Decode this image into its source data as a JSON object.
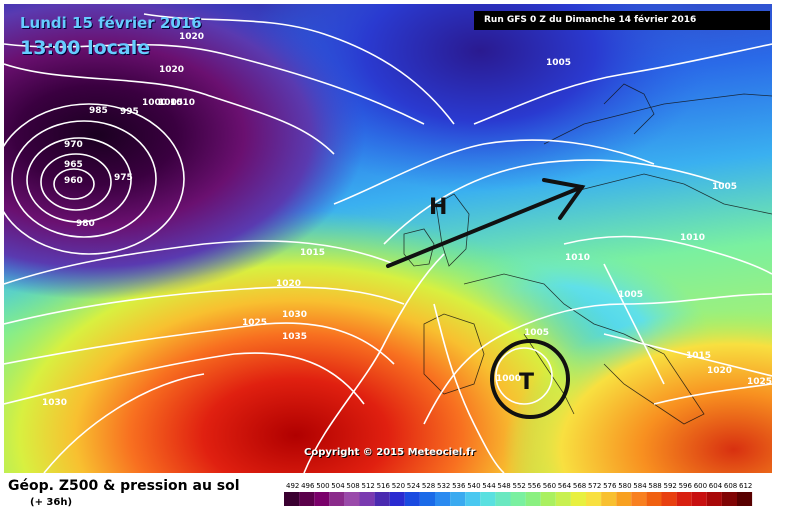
{
  "header": {
    "date": "Lundi 15 février 2016",
    "time": "13:00 locale",
    "run": "Run GFS 0 Z du Dimanche 14 février 2016"
  },
  "footer": {
    "title": "Géop. Z500 & pression au sol",
    "subtitle": "(+ 36h)",
    "copyright": "Copyright © 2015 Meteociel.fr"
  },
  "map": {
    "pressure_labels": [
      {
        "id": "p1020a",
        "text": "1020"
      },
      {
        "id": "p1020b",
        "text": "1020"
      },
      {
        "id": "p985",
        "text": "985"
      },
      {
        "id": "p995",
        "text": "995"
      },
      {
        "id": "p1000",
        "text": "1000"
      },
      {
        "id": "p1005a",
        "text": "1005"
      },
      {
        "id": "p1010a",
        "text": "1010"
      },
      {
        "id": "p970",
        "text": "970"
      },
      {
        "id": "p965",
        "text": "965"
      },
      {
        "id": "p960",
        "text": "960"
      },
      {
        "id": "p975",
        "text": "975"
      },
      {
        "id": "p980",
        "text": "980"
      },
      {
        "id": "p1015a",
        "text": "1015"
      },
      {
        "id": "p1020c",
        "text": "1020"
      },
      {
        "id": "p1025a",
        "text": "1025"
      },
      {
        "id": "p1030a",
        "text": "1030"
      },
      {
        "id": "p1035",
        "text": "1035"
      },
      {
        "id": "p1030b",
        "text": "1030"
      },
      {
        "id": "p1005b",
        "text": "1005"
      },
      {
        "id": "p1005c",
        "text": "1005"
      },
      {
        "id": "p1010b",
        "text": "1010"
      },
      {
        "id": "p1010c",
        "text": "1010"
      },
      {
        "id": "p1005d",
        "text": "1005"
      },
      {
        "id": "p1005e",
        "text": "1005"
      },
      {
        "id": "p1000b",
        "text": "1000"
      },
      {
        "id": "p1015b",
        "text": "1015"
      },
      {
        "id": "p1020d",
        "text": "1020"
      },
      {
        "id": "p1025b",
        "text": "1025"
      }
    ],
    "high_symbol": "H",
    "low_symbol": "T"
  },
  "legend": {
    "values": [
      "492",
      "496",
      "500",
      "504",
      "508",
      "512",
      "516",
      "520",
      "524",
      "528",
      "532",
      "536",
      "540",
      "544",
      "548",
      "552",
      "556",
      "560",
      "564",
      "568",
      "572",
      "576",
      "580",
      "584",
      "588",
      "592",
      "596",
      "600",
      "604",
      "608",
      "612"
    ],
    "colors": [
      "#3a0030",
      "#5a004a",
      "#7a006a",
      "#8a2a8a",
      "#9a4aaa",
      "#7a3ab0",
      "#4a2ab0",
      "#2a2ad0",
      "#1a4ae0",
      "#1a6ae8",
      "#2a8af0",
      "#3aaaf0",
      "#4ac8f0",
      "#5ae0e0",
      "#6ae8c0",
      "#7af0a0",
      "#8af080",
      "#aaf060",
      "#c8f050",
      "#e8f040",
      "#f8e040",
      "#f8c030",
      "#f8a020",
      "#f88020",
      "#f06010",
      "#e84010",
      "#d82010",
      "#c81010",
      "#a80808",
      "#800404",
      "#580000"
    ]
  }
}
